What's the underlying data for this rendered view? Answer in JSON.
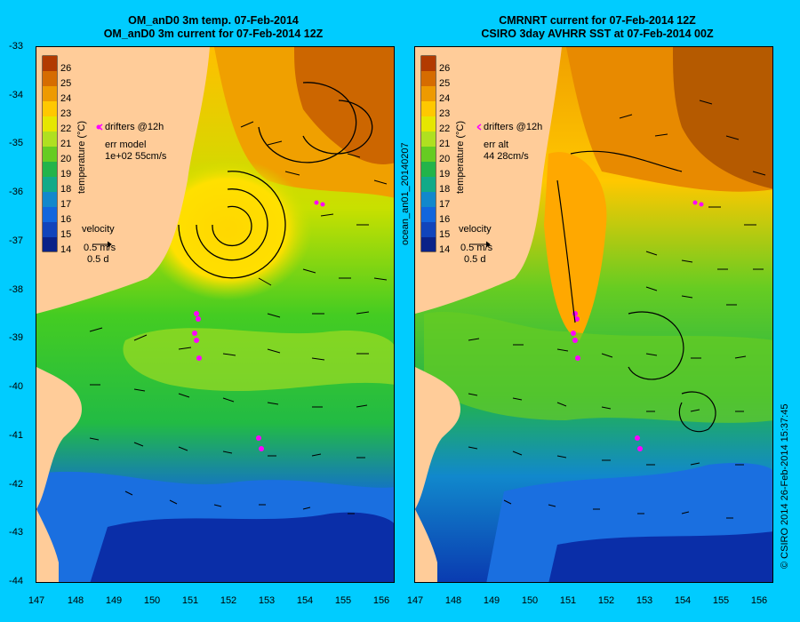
{
  "left_panel": {
    "title_line1": "OM_anD0 3m temp. 07-Feb-2014",
    "title_line2": "OM_anD0 3m current for 07-Feb-2014 12Z",
    "drifters_label": "drifters @12h",
    "err_line1": "err model",
    "err_line2": "1e+02 55cm/s",
    "velocity_label": "velocity",
    "velocity_scale": "0.5 m/s",
    "velocity_time": "0.5 d",
    "colorbar_title": "temperature (°C)"
  },
  "right_panel": {
    "title_line1": "CMRNRT current for 07-Feb-2014 12Z",
    "title_line2": "CSIRO 3day AVHRR SST at 07-Feb-2014 00Z",
    "drifters_label": "drifters @12h",
    "err_line1": "err alt",
    "err_line2": "44 28cm/s",
    "velocity_label": "velocity",
    "velocity_scale": "0.5 m/s",
    "velocity_time": "0.5 d",
    "colorbar_title": "temperature (°C)"
  },
  "side_label": "ocean_an01_20140207",
  "footer_label": "© CSIRO 2014   26-Feb-2014 15:37:45",
  "colorbar_ticks": [
    "26",
    "25",
    "24",
    "23",
    "22",
    "21",
    "20",
    "19",
    "18",
    "17",
    "16",
    "15",
    "14"
  ],
  "y_ticks": [
    "-33",
    "-34",
    "-35",
    "-36",
    "-37",
    "-38",
    "-39",
    "-40",
    "-41",
    "-42",
    "-43",
    "-44"
  ],
  "x_ticks": [
    "147",
    "148",
    "149",
    "150",
    "151",
    "152",
    "153",
    "154",
    "155",
    "156"
  ],
  "colors": {
    "background": "#00ccff",
    "land": "#ffcc99",
    "drifter": "#ff00ff",
    "warm": "#cc6600",
    "cold": "#0033aa"
  }
}
